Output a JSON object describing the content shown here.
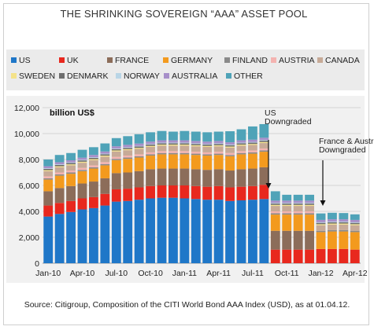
{
  "title": "THE SHRINKING SOVEREIGN “AAA” ASSET POOL",
  "source": "Source: Citigroup, Composition of the CITI World Bond AAA Index (USD), as at 01.04.12.",
  "colors": {
    "US": "#1f77c8",
    "UK": "#e8281e",
    "FRANCE": "#8c6d5a",
    "GERMANY": "#f39a1e",
    "FINLAND": "#8a8a8a",
    "AUSTRIA": "#f4b3b0",
    "CANADA": "#c7aa97",
    "SWEDEN": "#f4e28a",
    "DENMARK": "#6d6d6d",
    "NORWAY": "#b9d5e6",
    "AUSTRALIA": "#a78fc9",
    "OTHER": "#4fa3b8"
  },
  "chart_data": {
    "type": "bar",
    "stacked": true,
    "title": "THE SHRINKING SOVEREIGN “AAA” ASSET POOL",
    "ylabel": "billion US$",
    "ylim": [
      0,
      12000
    ],
    "yticks": [
      "0",
      "2,000",
      "4,000",
      "6,000",
      "8,000",
      "10,000",
      "12,000"
    ],
    "grid": true,
    "legend_position": "top",
    "categories": [
      "Jan-10",
      "Feb-10",
      "Mar-10",
      "Apr-10",
      "May-10",
      "Jun-10",
      "Jul-10",
      "Aug-10",
      "Sep-10",
      "Oct-10",
      "Nov-10",
      "Dec-10",
      "Jan-11",
      "Feb-11",
      "Mar-11",
      "Apr-11",
      "May-11",
      "Jun-11",
      "Jul-11",
      "Aug-11",
      "Sep-11",
      "Oct-11",
      "Nov-11",
      "Dec-11",
      "Jan-12",
      "Feb-12",
      "Mar-12",
      "Apr-12"
    ],
    "xtick_labels": [
      "Jan-10",
      "Apr-10",
      "Jul-10",
      "Oct-10",
      "Jan-11",
      "Apr-11",
      "Jul-11",
      "Oct-11",
      "Jan-12",
      "Apr-12"
    ],
    "xtick_indices": [
      0,
      3,
      6,
      9,
      12,
      15,
      18,
      21,
      24,
      27
    ],
    "series": [
      {
        "name": "US",
        "values": [
          3600,
          3800,
          3950,
          4150,
          4250,
          4450,
          4750,
          4800,
          4900,
          5000,
          5050,
          5050,
          5000,
          4950,
          4900,
          4900,
          4800,
          4850,
          4900,
          4950,
          0,
          0,
          0,
          0,
          0,
          0,
          0,
          0
        ]
      },
      {
        "name": "UK",
        "values": [
          850,
          850,
          850,
          850,
          850,
          900,
          950,
          950,
          950,
          950,
          950,
          950,
          1000,
          1000,
          1000,
          1050,
          1050,
          1050,
          1050,
          1100,
          1050,
          1050,
          1050,
          1050,
          1100,
          1100,
          1100,
          1050
        ]
      },
      {
        "name": "FRANCE",
        "values": [
          1100,
          1150,
          1150,
          1150,
          1200,
          1200,
          1250,
          1250,
          1250,
          1300,
          1300,
          1300,
          1300,
          1300,
          1300,
          1300,
          1300,
          1350,
          1350,
          1350,
          1450,
          1450,
          1450,
          1450,
          0,
          0,
          0,
          0
        ]
      },
      {
        "name": "GERMANY",
        "values": [
          900,
          950,
          950,
          950,
          1000,
          1000,
          1000,
          1050,
          1050,
          1050,
          1100,
          1100,
          1100,
          1100,
          1100,
          1100,
          1100,
          1150,
          1150,
          1200,
          1250,
          1250,
          1250,
          1250,
          1300,
          1350,
          1350,
          1350
        ]
      },
      {
        "name": "FINLAND",
        "values": [
          100,
          100,
          100,
          100,
          100,
          100,
          100,
          100,
          100,
          100,
          100,
          100,
          100,
          100,
          100,
          100,
          100,
          100,
          100,
          100,
          100,
          100,
          100,
          100,
          100,
          100,
          100,
          100
        ]
      },
      {
        "name": "AUSTRIA",
        "values": [
          150,
          150,
          150,
          150,
          150,
          150,
          150,
          150,
          150,
          150,
          150,
          150,
          150,
          150,
          150,
          150,
          150,
          150,
          150,
          150,
          150,
          150,
          150,
          150,
          0,
          0,
          0,
          0
        ]
      },
      {
        "name": "CANADA",
        "values": [
          400,
          400,
          400,
          400,
          400,
          420,
          420,
          420,
          420,
          420,
          420,
          420,
          420,
          420,
          420,
          420,
          420,
          420,
          420,
          420,
          420,
          420,
          420,
          420,
          430,
          430,
          430,
          430
        ]
      },
      {
        "name": "SWEDEN",
        "values": [
          80,
          80,
          80,
          80,
          80,
          80,
          80,
          80,
          80,
          80,
          80,
          80,
          80,
          80,
          80,
          80,
          80,
          80,
          80,
          80,
          80,
          80,
          80,
          80,
          80,
          80,
          80,
          80
        ]
      },
      {
        "name": "DENMARK",
        "values": [
          100,
          100,
          100,
          100,
          100,
          100,
          100,
          100,
          100,
          100,
          100,
          100,
          100,
          100,
          100,
          100,
          100,
          100,
          100,
          100,
          100,
          100,
          100,
          100,
          100,
          100,
          100,
          100
        ]
      },
      {
        "name": "NORWAY",
        "values": [
          50,
          50,
          50,
          50,
          50,
          50,
          50,
          50,
          50,
          50,
          50,
          50,
          50,
          50,
          50,
          50,
          50,
          50,
          50,
          50,
          50,
          50,
          50,
          50,
          50,
          50,
          50,
          50
        ]
      },
      {
        "name": "AUSTRALIA",
        "values": [
          150,
          160,
          160,
          160,
          170,
          170,
          170,
          180,
          180,
          180,
          180,
          180,
          180,
          180,
          180,
          180,
          180,
          180,
          180,
          180,
          180,
          180,
          180,
          180,
          180,
          180,
          180,
          180
        ]
      },
      {
        "name": "OTHER",
        "values": [
          520,
          560,
          560,
          610,
          600,
          620,
          630,
          670,
          720,
          720,
          720,
          670,
          720,
          720,
          720,
          720,
          850,
          850,
          1020,
          1050,
          720,
          450,
          450,
          450,
          500,
          500,
          480,
          430
        ]
      }
    ],
    "annotations": [
      {
        "text_lines": [
          "US",
          "Downgraded"
        ],
        "after_index": 19
      },
      {
        "text_lines": [
          "France & Austria",
          "Downgraded"
        ],
        "after_index": 23
      }
    ]
  }
}
